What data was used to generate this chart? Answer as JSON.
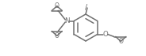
{
  "bg_color": "#ffffff",
  "line_color": "#707070",
  "text_color": "#707070",
  "lw": 1.1,
  "fs": 5.8,
  "xlim": [
    0,
    184
  ],
  "ylim": [
    0,
    71
  ],
  "bx": 108,
  "by": 36,
  "br": 17,
  "hex_angles": [
    90,
    30,
    -30,
    -90,
    -150,
    150
  ]
}
